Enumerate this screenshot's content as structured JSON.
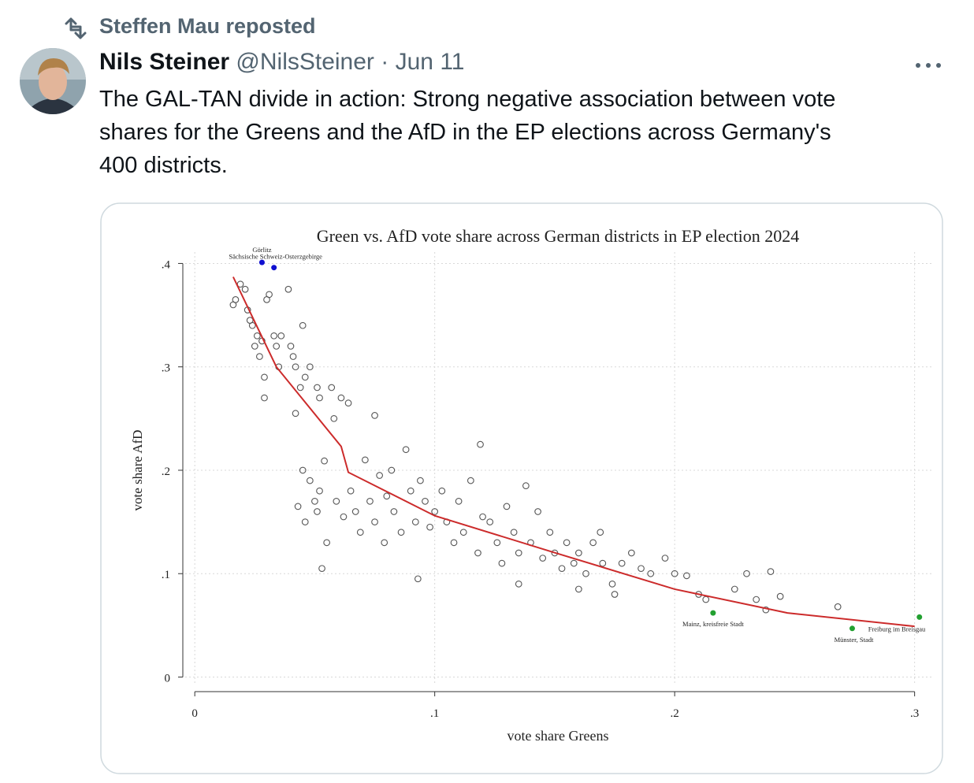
{
  "repost": {
    "text": "Steffen Mau reposted"
  },
  "author": {
    "name": "Nils Steiner",
    "handle": "@NilsSteiner",
    "separator": "·",
    "date": "Jun 11"
  },
  "tweet": {
    "text_lines": [
      "The GAL-TAN divide in action: Strong negative association between vote",
      "shares for the Greens and the AfD in the EP elections across Germany's",
      "400 districts."
    ]
  },
  "chart_data": {
    "type": "scatter",
    "title": "Green vs. AfD vote share across German districts in EP election 2024",
    "xlabel": "vote share Greens",
    "ylabel": "vote share AfD",
    "xlim": [
      -0.004,
      0.308
    ],
    "ylim": [
      -0.008,
      0.411
    ],
    "xticks": [
      0,
      {
        "value": 0.1,
        "label": ".1"
      },
      {
        "value": 0.2,
        "label": ".2"
      },
      {
        "value": 0.3,
        "label": ".3"
      }
    ],
    "yticks": [
      0,
      {
        "value": 0.1,
        "label": ".1"
      },
      {
        "value": 0.2,
        "label": ".2"
      },
      {
        "value": 0.3,
        "label": ".3"
      },
      {
        "value": 0.4,
        "label": ".4"
      }
    ],
    "grid": true,
    "color": "#555555",
    "x": [
      0.017,
      0.016,
      0.019,
      0.021,
      0.022,
      0.023,
      0.024,
      0.026,
      0.025,
      0.027,
      0.028,
      0.029,
      0.03,
      0.031,
      0.033,
      0.034,
      0.036,
      0.035,
      0.029,
      0.039,
      0.04,
      0.041,
      0.042,
      0.045,
      0.044,
      0.046,
      0.048,
      0.051,
      0.052,
      0.057,
      0.061,
      0.058,
      0.064,
      0.075,
      0.054,
      0.042,
      0.045,
      0.048,
      0.05,
      0.052,
      0.043,
      0.046,
      0.051,
      0.055,
      0.053,
      0.059,
      0.062,
      0.065,
      0.067,
      0.069,
      0.071,
      0.073,
      0.075,
      0.077,
      0.079,
      0.08,
      0.082,
      0.083,
      0.086,
      0.088,
      0.09,
      0.092,
      0.094,
      0.096,
      0.098,
      0.1,
      0.093,
      0.103,
      0.105,
      0.108,
      0.11,
      0.112,
      0.115,
      0.118,
      0.12,
      0.119,
      0.123,
      0.126,
      0.128,
      0.13,
      0.133,
      0.135,
      0.138,
      0.14,
      0.143,
      0.145,
      0.148,
      0.15,
      0.153,
      0.155,
      0.158,
      0.16,
      0.163,
      0.166,
      0.169,
      0.17,
      0.174,
      0.178,
      0.182,
      0.186,
      0.19,
      0.196,
      0.2,
      0.205,
      0.21,
      0.213,
      0.225,
      0.23,
      0.234,
      0.24,
      0.244,
      0.238,
      0.268,
      0.16,
      0.135,
      0.175
    ],
    "values": [
      0.365,
      0.36,
      0.38,
      0.375,
      0.355,
      0.345,
      0.34,
      0.33,
      0.32,
      0.31,
      0.325,
      0.29,
      0.365,
      0.37,
      0.33,
      0.32,
      0.33,
      0.3,
      0.27,
      0.375,
      0.32,
      0.31,
      0.3,
      0.34,
      0.28,
      0.29,
      0.3,
      0.28,
      0.27,
      0.28,
      0.27,
      0.25,
      0.265,
      0.253,
      0.209,
      0.255,
      0.2,
      0.19,
      0.17,
      0.18,
      0.165,
      0.15,
      0.16,
      0.13,
      0.105,
      0.17,
      0.155,
      0.18,
      0.16,
      0.14,
      0.21,
      0.17,
      0.15,
      0.195,
      0.13,
      0.175,
      0.2,
      0.16,
      0.14,
      0.22,
      0.18,
      0.15,
      0.19,
      0.17,
      0.145,
      0.16,
      0.095,
      0.18,
      0.15,
      0.13,
      0.17,
      0.14,
      0.19,
      0.12,
      0.155,
      0.225,
      0.15,
      0.13,
      0.11,
      0.165,
      0.14,
      0.12,
      0.185,
      0.13,
      0.16,
      0.115,
      0.14,
      0.12,
      0.105,
      0.13,
      0.11,
      0.12,
      0.1,
      0.13,
      0.14,
      0.11,
      0.09,
      0.11,
      0.12,
      0.105,
      0.1,
      0.115,
      0.1,
      0.098,
      0.08,
      0.075,
      0.085,
      0.1,
      0.075,
      0.102,
      0.078,
      0.065,
      0.068,
      0.085,
      0.09,
      0.08
    ],
    "fit": {
      "color": "#cc2b2b",
      "x": [
        0.016,
        0.034,
        0.061,
        0.064,
        0.1,
        0.149,
        0.2,
        0.247,
        0.3
      ],
      "values": [
        0.387,
        0.3,
        0.223,
        0.198,
        0.156,
        0.121,
        0.085,
        0.062,
        0.049
      ]
    },
    "highlights": [
      {
        "label": "Görlitz",
        "x": 0.028,
        "y": 0.401,
        "color": "#1010d0"
      },
      {
        "label": "Sächsische Schweiz-Osterzgebirge",
        "x": 0.033,
        "y": 0.396,
        "color": "#1010d0"
      },
      {
        "label": "Mainz, kreisfreie Stadt",
        "x": 0.216,
        "y": 0.062,
        "color": "#22a030"
      },
      {
        "label": "Münster, Stadt",
        "x": 0.274,
        "y": 0.047,
        "color": "#22a030"
      },
      {
        "label": "Freiburg im Breisgau",
        "x": 0.302,
        "y": 0.058,
        "color": "#22a030"
      }
    ]
  }
}
